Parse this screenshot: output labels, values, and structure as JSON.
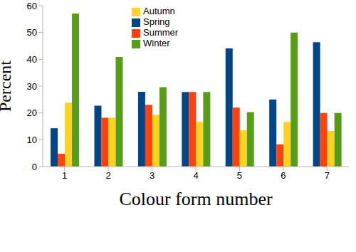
{
  "chart_data": {
    "type": "bar",
    "x_label": "Colour form number",
    "y_label": "Percent",
    "categories": [
      "1",
      "2",
      "3",
      "4",
      "5",
      "6",
      "7"
    ],
    "series": [
      {
        "name": "Spring",
        "color": "#004586",
        "values": [
          14.3,
          22.7,
          27.9,
          27.8,
          44.1,
          25.0,
          46.4
        ]
      },
      {
        "name": "Summer",
        "color": "#ff420e",
        "values": [
          4.8,
          18.2,
          23.0,
          27.8,
          22.0,
          8.3,
          20.0
        ]
      },
      {
        "name": "Autumn",
        "color": "#ffd320",
        "values": [
          23.8,
          18.2,
          19.3,
          16.7,
          13.6,
          16.7,
          13.3
        ]
      },
      {
        "name": "Winter",
        "color": "#579d1c",
        "values": [
          57.1,
          40.9,
          29.6,
          27.8,
          20.3,
          50.0,
          20.0
        ]
      }
    ],
    "ylim": [
      0,
      60
    ],
    "yticks": [
      0,
      10,
      20,
      30,
      40,
      50,
      60
    ],
    "grid": false,
    "legend": "top"
  }
}
